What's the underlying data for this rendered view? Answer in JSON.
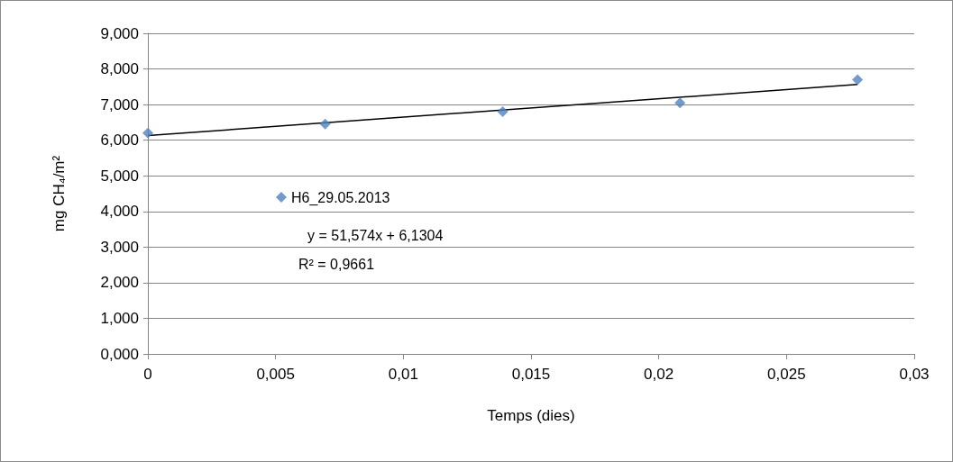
{
  "chart_data": {
    "type": "scatter",
    "xlabel": "Temps (dies)",
    "ylabel": "mg CH₄/m²",
    "x": [
      0,
      0.00694,
      0.01389,
      0.02083,
      0.02778
    ],
    "series": [
      {
        "name": "H6_29.05.2013",
        "color": "#4f81bd",
        "values": [
          6.2,
          6.45,
          6.8,
          7.05,
          7.7
        ]
      },
      {
        "type": "line",
        "color": "#000000",
        "x": [
          0,
          0.02778
        ],
        "values": [
          6.1304,
          7.5631
        ],
        "marker": "none"
      }
    ],
    "xlim": [
      0,
      0.03
    ],
    "xticks": [
      0,
      {
        "value": 0.005,
        "label": "0,005"
      },
      {
        "value": 0.01,
        "label": "0,01"
      },
      {
        "value": 0.015,
        "label": "0,015"
      },
      {
        "value": 0.02,
        "label": "0,02"
      },
      {
        "value": 0.025,
        "label": "0,025"
      },
      {
        "value": 0.03,
        "label": "0,03"
      }
    ],
    "ylim": [
      0,
      9
    ],
    "yticks": [
      {
        "value": 0,
        "label": "0,000"
      },
      {
        "value": 1,
        "label": "1,000"
      },
      {
        "value": 2,
        "label": "2,000"
      },
      {
        "value": 3,
        "label": "3,000"
      },
      {
        "value": 4,
        "label": "4,000"
      },
      {
        "value": 5,
        "label": "5,000"
      },
      {
        "value": 6,
        "label": "6,000"
      },
      {
        "value": 7,
        "label": "7,000"
      },
      {
        "value": 8,
        "label": "8,000"
      },
      {
        "value": 9,
        "label": "9,000"
      }
    ],
    "annotations": [
      "y = 51,574x + 6,1304",
      "R² = 0,9661"
    ],
    "grid": "y",
    "legend": "left",
    "marker": "diamond"
  }
}
